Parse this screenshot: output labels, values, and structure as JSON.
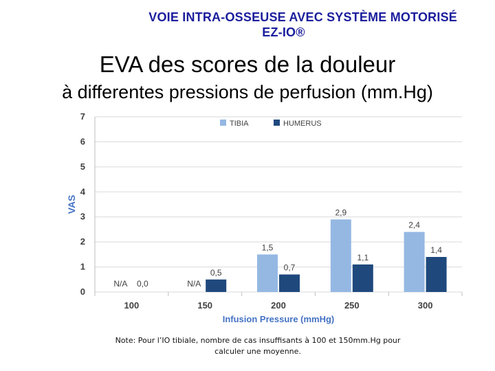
{
  "header": {
    "line1": "VOIE INTRA-OSSEUSE AVEC SYSTÈME MOTORISÉ",
    "line2": "EZ-IO®"
  },
  "titles": {
    "main": "EVA des scores de la douleur",
    "sub": "à differentes pressions de perfusion (mm.Hg)"
  },
  "note": {
    "line1": "Note: Pour l’IO tibiale, nombre de cas insuffisants à 100 et 150mm.Hg  pour",
    "line2": "calculer une moyenne."
  },
  "colors": {
    "tibia": "#95b8e3",
    "humerus": "#1f497d",
    "axis_label": "#4472c4",
    "text": "#404040",
    "grid": "#d9d9d9"
  },
  "chart_data": {
    "type": "bar",
    "title": "",
    "xlabel": "Infusion Pressure (mmHg)",
    "ylabel": "VAS",
    "ylim": [
      0,
      7
    ],
    "yticks": [
      0,
      1,
      2,
      3,
      4,
      5,
      6,
      7
    ],
    "grid": true,
    "legend_position": "top-center",
    "categories": [
      "100",
      "150",
      "200",
      "250",
      "300"
    ],
    "series": [
      {
        "name": "TIBIA",
        "values": [
          null,
          null,
          1.5,
          2.9,
          2.4
        ],
        "labels": [
          "N/A",
          "N/A",
          "1,5",
          "2,9",
          "2,4"
        ]
      },
      {
        "name": "HUMERUS",
        "values": [
          0.0,
          0.5,
          0.7,
          1.1,
          1.4
        ],
        "labels": [
          "0,0",
          "0,5",
          "0,7",
          "1,1",
          "1,4"
        ]
      }
    ]
  }
}
